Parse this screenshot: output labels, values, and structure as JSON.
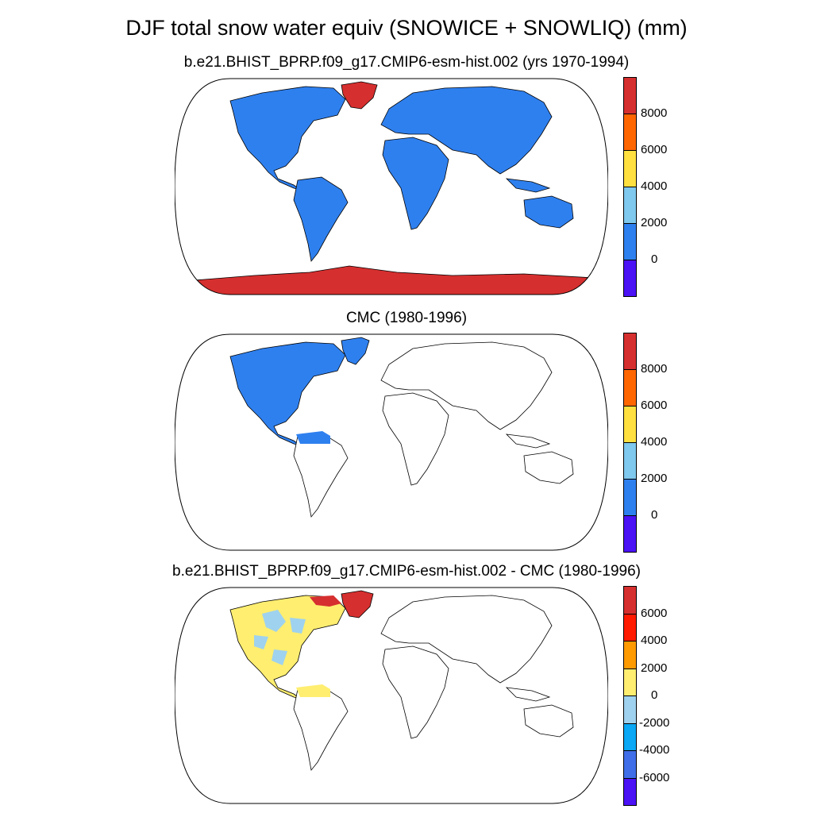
{
  "figure": {
    "title": "DJF total snow water equiv (SNOWICE + SNOWLIQ) (mm)"
  },
  "panels": [
    {
      "title": "b.e21.BHIST_BPRP.f09_g17.CMIP6-esm-hist.002 (yrs 1970-1994)",
      "colorbar": {
        "colors": [
          "#d62f2f",
          "#ff6600",
          "#ffe040",
          "#7fc8ee",
          "#2f80ef",
          "#4a12f5"
        ],
        "labels": [
          "8000",
          "6000",
          "4000",
          "2000",
          "0"
        ]
      }
    },
    {
      "title": "CMC (1980-1996)",
      "colorbar": {
        "colors": [
          "#d62f2f",
          "#ff6600",
          "#ffe040",
          "#7fc8ee",
          "#2f80ef",
          "#4a12f5"
        ],
        "labels": [
          "8000",
          "6000",
          "4000",
          "2000",
          "0"
        ]
      }
    },
    {
      "title": "b.e21.BHIST_BPRP.f09_g17.CMIP6-esm-hist.002 - CMC (1980-1996)",
      "colorbar": {
        "colors": [
          "#d62f2f",
          "#ff1a00",
          "#ff9a00",
          "#ffee70",
          "#9fd2ee",
          "#0aa8f5",
          "#3f6ee8",
          "#4a12f5"
        ],
        "labels": [
          "6000",
          "4000",
          "2000",
          "0",
          "-2000",
          "-4000",
          "-6000"
        ]
      }
    }
  ]
}
